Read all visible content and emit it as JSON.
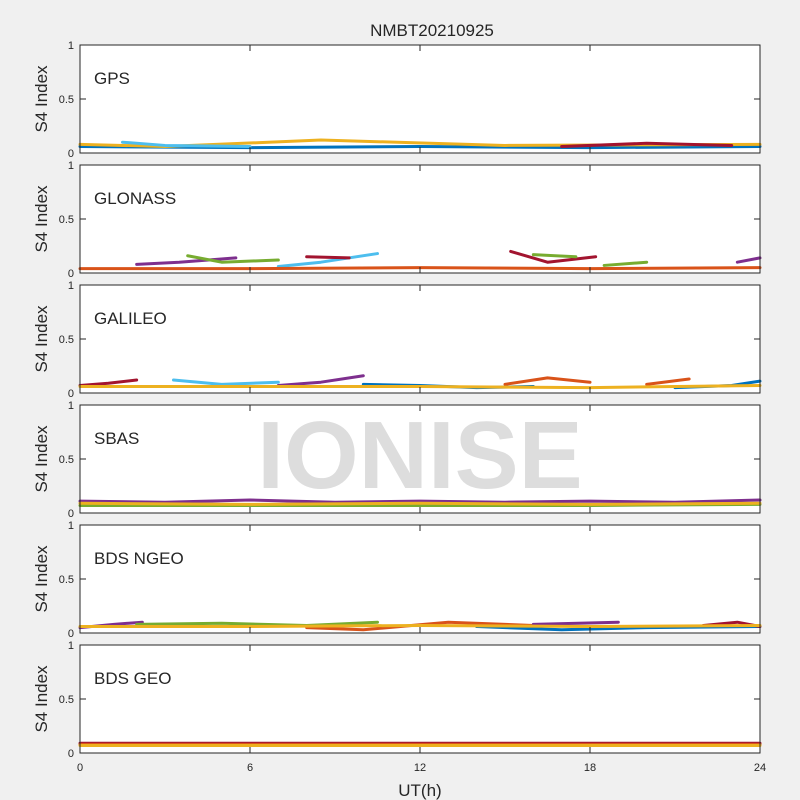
{
  "figure": {
    "title": "NMBT20210925",
    "watermark": "IONISE",
    "xlabel": "UT(h)",
    "ylabel": "S4 Index",
    "colors": [
      "#0072BD",
      "#D95319",
      "#EDB120",
      "#7E2F8E",
      "#77AC30",
      "#4DBEEE",
      "#A2142F"
    ]
  },
  "chart_data": [
    {
      "type": "line",
      "panel": "GPS",
      "xlim": [
        0,
        24
      ],
      "ylim": [
        0,
        1
      ],
      "xticks": [
        0,
        6,
        12,
        18,
        24
      ],
      "yticks": [
        0,
        0.5,
        1
      ],
      "ytick_labels": [
        "0",
        "0.5",
        "1"
      ],
      "grid": false,
      "series": [
        {
          "color": "#0072BD",
          "x": [
            0,
            6,
            12,
            18,
            24
          ],
          "y": [
            0.06,
            0.05,
            0.06,
            0.05,
            0.06
          ]
        },
        {
          "color": "#EDB120",
          "x": [
            0,
            3,
            8.5,
            15,
            24
          ],
          "y": [
            0.08,
            0.06,
            0.12,
            0.07,
            0.08
          ]
        },
        {
          "color": "#4DBEEE",
          "x": [
            1.5,
            3,
            6
          ],
          "y": [
            0.1,
            0.07,
            0.06
          ]
        },
        {
          "color": "#A2142F",
          "x": [
            17,
            20,
            23
          ],
          "y": [
            0.06,
            0.09,
            0.07
          ]
        }
      ]
    },
    {
      "type": "line",
      "panel": "GLONASS",
      "xlim": [
        0,
        24
      ],
      "ylim": [
        0,
        1
      ],
      "xticks": [
        0,
        6,
        12,
        18,
        24
      ],
      "yticks": [
        0,
        0.5,
        1
      ],
      "ytick_labels": [
        "0",
        "0.5",
        "1"
      ],
      "grid": false,
      "series": [
        {
          "color": "#7E2F8E",
          "x": [
            2,
            3.5,
            5.5
          ],
          "y": [
            0.08,
            0.1,
            0.14
          ]
        },
        {
          "color": "#77AC30",
          "x": [
            3.8,
            5,
            7
          ],
          "y": [
            0.16,
            0.1,
            0.12
          ]
        },
        {
          "color": "#4DBEEE",
          "x": [
            7,
            8.5,
            10.5
          ],
          "y": [
            0.06,
            0.1,
            0.18
          ]
        },
        {
          "color": "#A2142F",
          "x": [
            8,
            9.5
          ],
          "y": [
            0.15,
            0.14
          ]
        },
        {
          "color": "#A2142F",
          "x": [
            15.2,
            16.5,
            18.2
          ],
          "y": [
            0.2,
            0.1,
            0.15
          ]
        },
        {
          "color": "#77AC30",
          "x": [
            16,
            17.5
          ],
          "y": [
            0.17,
            0.15
          ]
        },
        {
          "color": "#77AC30",
          "x": [
            18.5,
            20
          ],
          "y": [
            0.07,
            0.1
          ]
        },
        {
          "color": "#D95319",
          "x": [
            0,
            6,
            12,
            18,
            24
          ],
          "y": [
            0.04,
            0.04,
            0.05,
            0.04,
            0.05
          ]
        },
        {
          "color": "#7E2F8E",
          "x": [
            23.2,
            24
          ],
          "y": [
            0.1,
            0.14
          ]
        }
      ]
    },
    {
      "type": "line",
      "panel": "GALILEO",
      "xlim": [
        0,
        24
      ],
      "ylim": [
        0,
        1
      ],
      "xticks": [
        0,
        6,
        12,
        18,
        24
      ],
      "yticks": [
        0,
        0.5,
        1
      ],
      "ytick_labels": [
        "0",
        "0.5",
        "1"
      ],
      "grid": false,
      "series": [
        {
          "color": "#A2142F",
          "x": [
            0,
            1,
            2
          ],
          "y": [
            0.07,
            0.09,
            0.12
          ]
        },
        {
          "color": "#4DBEEE",
          "x": [
            3.3,
            5,
            7
          ],
          "y": [
            0.12,
            0.08,
            0.1
          ]
        },
        {
          "color": "#7E2F8E",
          "x": [
            7,
            8.5,
            10
          ],
          "y": [
            0.07,
            0.1,
            0.16
          ]
        },
        {
          "color": "#0072BD",
          "x": [
            10,
            12,
            14,
            16
          ],
          "y": [
            0.08,
            0.07,
            0.05,
            0.06
          ]
        },
        {
          "color": "#D95319",
          "x": [
            15,
            16.5,
            18
          ],
          "y": [
            0.08,
            0.14,
            0.1
          ]
        },
        {
          "color": "#D95319",
          "x": [
            20,
            21.5
          ],
          "y": [
            0.08,
            0.13
          ]
        },
        {
          "color": "#0072BD",
          "x": [
            21,
            23,
            24
          ],
          "y": [
            0.05,
            0.07,
            0.11
          ]
        },
        {
          "color": "#EDB120",
          "x": [
            0,
            6,
            12,
            18,
            24
          ],
          "y": [
            0.06,
            0.06,
            0.06,
            0.05,
            0.07
          ]
        }
      ]
    },
    {
      "type": "line",
      "panel": "SBAS",
      "xlim": [
        0,
        24
      ],
      "ylim": [
        0,
        1
      ],
      "xticks": [
        0,
        6,
        12,
        18,
        24
      ],
      "yticks": [
        0,
        0.5,
        1
      ],
      "ytick_labels": [
        "0",
        "0.5",
        "1"
      ],
      "grid": false,
      "series": [
        {
          "color": "#7E2F8E",
          "x": [
            0,
            3,
            6,
            9,
            12,
            15,
            18,
            21,
            24
          ],
          "y": [
            0.11,
            0.1,
            0.12,
            0.1,
            0.11,
            0.1,
            0.11,
            0.1,
            0.12
          ]
        },
        {
          "color": "#77AC30",
          "x": [
            0,
            6,
            12,
            18,
            24
          ],
          "y": [
            0.07,
            0.07,
            0.07,
            0.07,
            0.08
          ]
        },
        {
          "color": "#EDB120",
          "x": [
            0,
            6,
            12,
            18,
            24
          ],
          "y": [
            0.09,
            0.08,
            0.09,
            0.08,
            0.09
          ]
        }
      ]
    },
    {
      "type": "line",
      "panel": "BDS NGEO",
      "xlim": [
        0,
        24
      ],
      "ylim": [
        0,
        1
      ],
      "xticks": [
        0,
        6,
        12,
        18,
        24
      ],
      "yticks": [
        0,
        0.5,
        1
      ],
      "ytick_labels": [
        "0",
        "0.5",
        "1"
      ],
      "grid": false,
      "series": [
        {
          "color": "#7E2F8E",
          "x": [
            0,
            1.2,
            2.2
          ],
          "y": [
            0.05,
            0.08,
            0.1
          ]
        },
        {
          "color": "#77AC30",
          "x": [
            2,
            5,
            8,
            10.5
          ],
          "y": [
            0.08,
            0.09,
            0.07,
            0.1
          ]
        },
        {
          "color": "#D95319",
          "x": [
            8,
            10,
            13,
            16
          ],
          "y": [
            0.05,
            0.03,
            0.1,
            0.07
          ]
        },
        {
          "color": "#0072BD",
          "x": [
            14,
            17,
            20,
            24
          ],
          "y": [
            0.06,
            0.03,
            0.05,
            0.06
          ]
        },
        {
          "color": "#A2142F",
          "x": [
            22,
            23.2,
            24
          ],
          "y": [
            0.07,
            0.1,
            0.06
          ]
        },
        {
          "color": "#7E2F8E",
          "x": [
            16,
            19
          ],
          "y": [
            0.08,
            0.1
          ]
        },
        {
          "color": "#EDB120",
          "x": [
            0,
            6,
            12,
            18,
            24
          ],
          "y": [
            0.06,
            0.06,
            0.07,
            0.06,
            0.07
          ]
        }
      ]
    },
    {
      "type": "line",
      "panel": "BDS GEO",
      "xlim": [
        0,
        24
      ],
      "ylim": [
        0,
        1
      ],
      "xticks": [
        0,
        6,
        12,
        18,
        24
      ],
      "yticks": [
        0,
        0.5,
        1
      ],
      "ytick_labels": [
        "0",
        "0.5",
        "1"
      ],
      "grid": false,
      "series": [
        {
          "color": "#A2142F",
          "x": [
            0,
            6,
            12,
            18,
            24
          ],
          "y": [
            0.09,
            0.09,
            0.09,
            0.09,
            0.09
          ]
        },
        {
          "color": "#D95319",
          "x": [
            0,
            6,
            12,
            18,
            24
          ],
          "y": [
            0.08,
            0.08,
            0.08,
            0.08,
            0.08
          ]
        },
        {
          "color": "#EDB120",
          "x": [
            0,
            6,
            12,
            18,
            24
          ],
          "y": [
            0.07,
            0.07,
            0.07,
            0.07,
            0.07
          ]
        }
      ]
    }
  ]
}
